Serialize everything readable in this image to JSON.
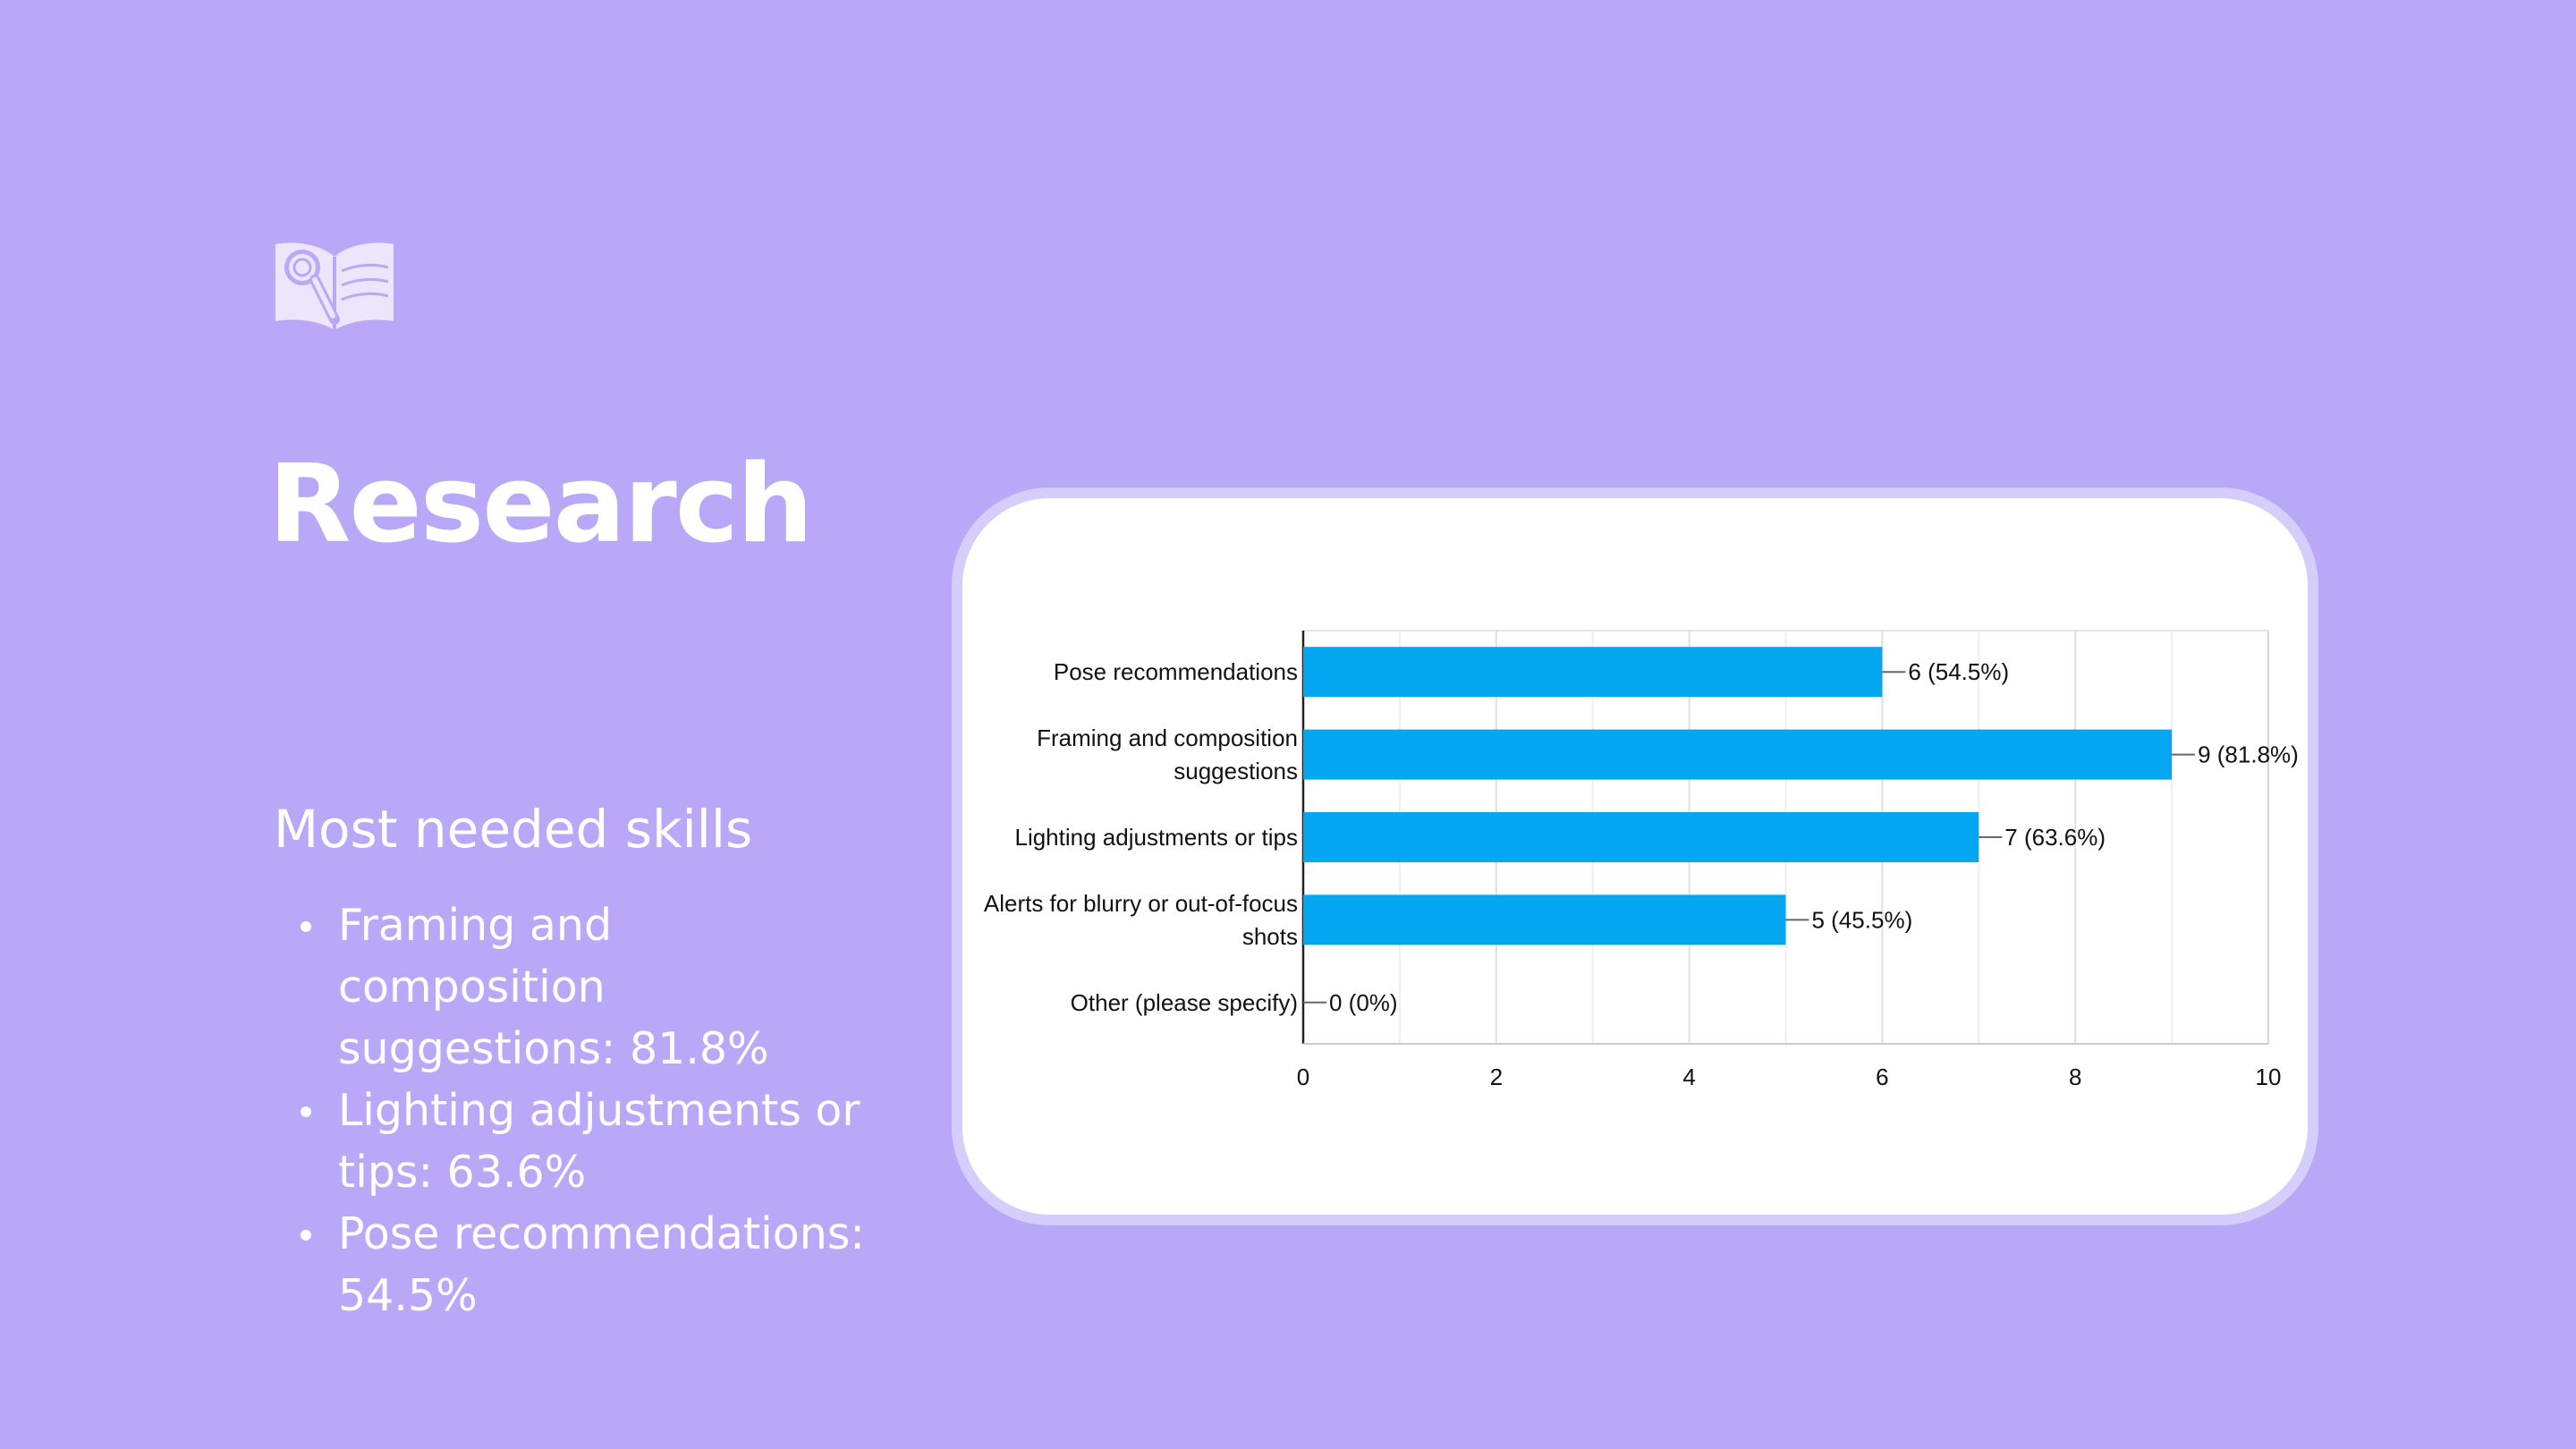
{
  "slide": {
    "title": "Research",
    "subtitle": "Most needed skills",
    "icon": "book-magnifier-icon",
    "background": "#b8a8f7",
    "skills": [
      "Framing and composition suggestions: 81.8%",
      "Lighting adjustments or tips: 63.6%",
      "Pose recommendations: 54.5%"
    ]
  },
  "chart_data": {
    "type": "bar",
    "orientation": "horizontal",
    "categories": [
      [
        "Pose recommendations"
      ],
      [
        "Framing and composition",
        "suggestions"
      ],
      [
        "Lighting adjustments or tips"
      ],
      [
        "Alerts for blurry or out-of-focus",
        "shots"
      ],
      [
        "Other (please specify)"
      ]
    ],
    "values": [
      6,
      9,
      7,
      5,
      0
    ],
    "data_labels": [
      "6 (54.5%)",
      "9 (81.8%)",
      "7 (63.6%)",
      "5 (45.5%)",
      "0 (0%)"
    ],
    "xlim": [
      0,
      10
    ],
    "xticks": [
      "0",
      "2",
      "4",
      "6",
      "8",
      "10"
    ],
    "grid": true,
    "bar_color": "#05a7f0",
    "title": "",
    "xlabel": "",
    "ylabel": ""
  }
}
